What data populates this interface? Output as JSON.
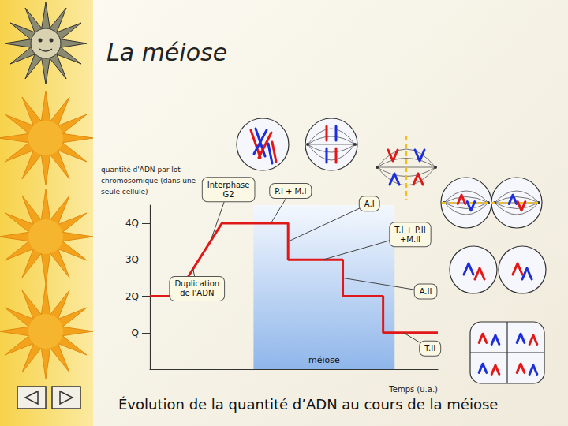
{
  "chart_data": {
    "type": "line",
    "title": "La méiose",
    "caption": "Évolution de la quantité d’ADN au cours de la méiose",
    "y_label": "quantité d'ADN par lot\nchromosomique (dans une\nseule cellule)",
    "x_label": "Temps (u.a.)",
    "x": [
      0,
      9,
      25,
      48,
      48,
      67,
      67,
      81,
      81,
      100
    ],
    "values": [
      2,
      2,
      4,
      4,
      3,
      3,
      2,
      2,
      1,
      1
    ],
    "color": "#e01818",
    "xlim": [
      0,
      100
    ],
    "ylim": [
      0,
      4.5
    ],
    "yticks": [
      {
        "value": 1,
        "label": "Q"
      },
      {
        "value": 2,
        "label": "2Q"
      },
      {
        "value": 3,
        "label": "3Q"
      },
      {
        "value": 4,
        "label": "4Q"
      }
    ],
    "grid": false,
    "tick_labels": "y",
    "shaded_region": {
      "x": [
        36,
        85
      ],
      "label": "méiose",
      "color": "#8fb6ea"
    },
    "annotations": [
      {
        "text": "Interphase\nG2",
        "x": 21,
        "y": 3.5
      },
      {
        "text": "P.I + M.I",
        "x": 42,
        "y": 4
      },
      {
        "text": "A.I",
        "x": 48,
        "y": 3.5
      },
      {
        "text": "T.I + P.II\n+M.II",
        "x": 60,
        "y": 3
      },
      {
        "text": "Duplication\nde l'ADN",
        "x": 15,
        "y": 2.75
      },
      {
        "text": "A.II",
        "x": 67,
        "y": 2.5
      },
      {
        "text": "T.II",
        "x": 88,
        "y": 1
      }
    ]
  }
}
